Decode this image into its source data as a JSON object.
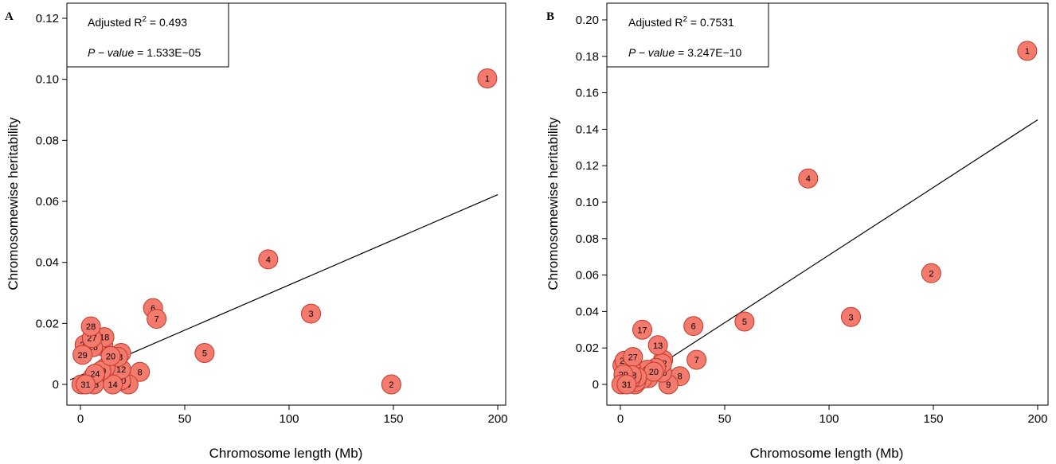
{
  "chart_data": [
    {
      "type": "scatter",
      "panel": "A",
      "xlabel": "Chromosome length (Mb)",
      "ylabel": "Chromosomewise heritability",
      "xlim": [
        0,
        200
      ],
      "ylim": [
        0,
        0.12
      ],
      "xticks": [
        "0",
        "50",
        "100",
        "150",
        "200"
      ],
      "yticks": [
        "0",
        "0.02",
        "0.04",
        "0.06",
        "0.08",
        "0.10",
        "0.12"
      ],
      "legend": {
        "r2_prefix": "Adjusted R",
        "r2_sup": "2",
        "r2_value": " = 0.493",
        "p_label": "P − value",
        "p_value": " = 1.533E−05"
      },
      "regression": {
        "x0": -5,
        "y0": 0.0015,
        "x1": 200,
        "y1": 0.0622
      },
      "points": [
        {
          "label": "1",
          "x": 195,
          "y": 0.1003
        },
        {
          "label": "2",
          "x": 149,
          "y": 0.0
        },
        {
          "label": "3",
          "x": 110.5,
          "y": 0.0232
        },
        {
          "label": "4",
          "x": 90,
          "y": 0.041
        },
        {
          "label": "5",
          "x": 59.5,
          "y": 0.0103
        },
        {
          "label": "6",
          "x": 34.8,
          "y": 0.025
        },
        {
          "label": "7",
          "x": 36.5,
          "y": 0.0215
        },
        {
          "label": "8",
          "x": 28.5,
          "y": 0.0041
        },
        {
          "label": "9",
          "x": 23,
          "y": 0.0
        },
        {
          "label": "10",
          "x": 19.5,
          "y": 0.0013
        },
        {
          "label": "11",
          "x": 19.5,
          "y": 0.0103
        },
        {
          "label": "12",
          "x": 19.5,
          "y": 0.005
        },
        {
          "label": "13",
          "x": 18,
          "y": 0.009
        },
        {
          "label": "14",
          "x": 15.5,
          "y": 0.0
        },
        {
          "label": "15",
          "x": 12,
          "y": 0.0055
        },
        {
          "label": "16",
          "x": 7,
          "y": 0.0035
        },
        {
          "label": "17",
          "x": 11,
          "y": 0.0125
        },
        {
          "label": "18",
          "x": 11.5,
          "y": 0.0155
        },
        {
          "label": "19",
          "x": 10,
          "y": 0.0045
        },
        {
          "label": "20",
          "x": 14.5,
          "y": 0.0093
        },
        {
          "label": "21",
          "x": 7,
          "y": 0.0028
        },
        {
          "label": "22",
          "x": 6,
          "y": 0.0025
        },
        {
          "label": "23",
          "x": 6.5,
          "y": 0.0
        },
        {
          "label": "24",
          "x": 7,
          "y": 0.0035
        },
        {
          "label": "25",
          "x": 2,
          "y": 0.013
        },
        {
          "label": "26",
          "x": 6,
          "y": 0.0122
        },
        {
          "label": "27",
          "x": 5.5,
          "y": 0.0152
        },
        {
          "label": "28",
          "x": 5,
          "y": 0.019
        },
        {
          "label": "29",
          "x": 1,
          "y": 0.0097
        },
        {
          "label": "30",
          "x": 0.5,
          "y": 0.0
        },
        {
          "label": "31",
          "x": 2.5,
          "y": 0.0
        }
      ]
    },
    {
      "type": "scatter",
      "panel": "B",
      "xlabel": "Chromosome length (Mb)",
      "ylabel": "Chromosomewise heritability",
      "xlim": [
        0,
        200
      ],
      "ylim": [
        0,
        0.2
      ],
      "xticks": [
        "0",
        "50",
        "100",
        "150",
        "200"
      ],
      "yticks": [
        "0",
        "0.02",
        "0.04",
        "0.06",
        "0.08",
        "0.10",
        "0.12",
        "0.14",
        "0.16",
        "0.18",
        "0.20"
      ],
      "legend": {
        "r2_prefix": "Adjusted R",
        "r2_sup": "2",
        "r2_value": " = 0.7531",
        "p_label": "P − value",
        "p_value": " = 3.247E−10"
      },
      "regression": {
        "x0": -1,
        "y0": -0.004,
        "x1": 200,
        "y1": 0.1452
      },
      "points": [
        {
          "label": "1",
          "x": 195,
          "y": 0.183
        },
        {
          "label": "2",
          "x": 149,
          "y": 0.061
        },
        {
          "label": "3",
          "x": 110.5,
          "y": 0.037
        },
        {
          "label": "4",
          "x": 90,
          "y": 0.113
        },
        {
          "label": "5",
          "x": 59.5,
          "y": 0.0345
        },
        {
          "label": "6",
          "x": 35,
          "y": 0.032
        },
        {
          "label": "7",
          "x": 36.5,
          "y": 0.0135
        },
        {
          "label": "8",
          "x": 28.5,
          "y": 0.0045
        },
        {
          "label": "9",
          "x": 23,
          "y": 0.0
        },
        {
          "label": "10",
          "x": 20,
          "y": 0.0065
        },
        {
          "label": "11",
          "x": 20.5,
          "y": 0.0135
        },
        {
          "label": "12",
          "x": 20,
          "y": 0.0115
        },
        {
          "label": "13",
          "x": 18,
          "y": 0.0215
        },
        {
          "label": "14",
          "x": 17,
          "y": 0.009
        },
        {
          "label": "15",
          "x": 13.5,
          "y": 0.0035
        },
        {
          "label": "16",
          "x": 1,
          "y": 0.0105
        },
        {
          "label": "17",
          "x": 10.5,
          "y": 0.03
        },
        {
          "label": "18",
          "x": 13,
          "y": 0.008
        },
        {
          "label": "19",
          "x": 10.5,
          "y": 0.003
        },
        {
          "label": "20",
          "x": 16,
          "y": 0.007
        },
        {
          "label": "21",
          "x": 7,
          "y": 0.0
        },
        {
          "label": "22",
          "x": 5,
          "y": 0.009
        },
        {
          "label": "23",
          "x": 7.5,
          "y": 0.0015
        },
        {
          "label": "24",
          "x": 8,
          "y": 0.004
        },
        {
          "label": "25",
          "x": 2,
          "y": 0.013
        },
        {
          "label": "26",
          "x": 5,
          "y": 0.003
        },
        {
          "label": "27",
          "x": 6,
          "y": 0.015
        },
        {
          "label": "28",
          "x": 5.5,
          "y": 0.005
        },
        {
          "label": "29",
          "x": 1.5,
          "y": 0.0055
        },
        {
          "label": "30",
          "x": 0.5,
          "y": 0.0
        },
        {
          "label": "31",
          "x": 3,
          "y": 0.0
        }
      ]
    }
  ]
}
